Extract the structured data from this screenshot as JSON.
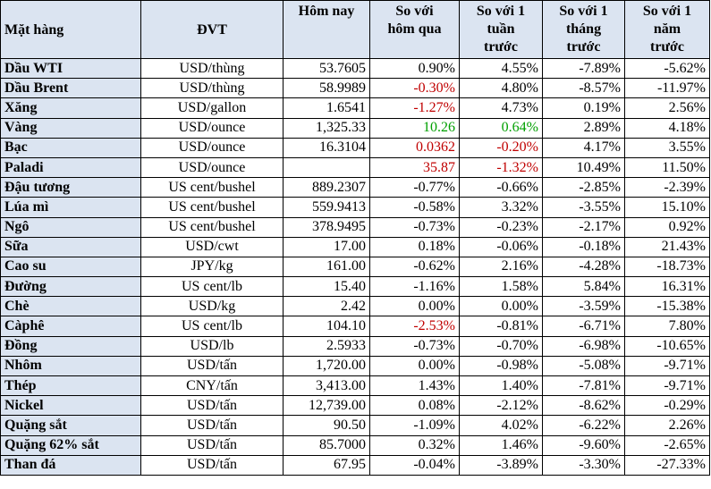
{
  "headers": {
    "item": "Mặt hàng",
    "unit": "ĐVT",
    "today": "Hôm nay",
    "vs_yesterday": [
      "So với",
      "hôm qua"
    ],
    "vs_week": [
      "So với 1",
      "tuần",
      "trước"
    ],
    "vs_month": [
      "So với 1",
      "tháng",
      "trước"
    ],
    "vs_year": [
      "So với 1",
      "năm",
      "trước"
    ]
  },
  "colors": {
    "header_bg": "#dbe4f1",
    "negative_red": "#c00000",
    "positive_green": "#00a000"
  },
  "rows": [
    {
      "name": "Dầu WTI",
      "unit": "USD/thùng",
      "today": "53.7605",
      "d": "0.90%",
      "w": "4.55%",
      "m": "-7.89%",
      "y": "-5.62%",
      "d_color": "",
      "w_color": ""
    },
    {
      "name": "Dầu Brent",
      "unit": "USD/thùng",
      "today": "58.9989",
      "d": "-0.30%",
      "w": "4.80%",
      "m": "-8.57%",
      "y": "-11.97%",
      "d_color": "red",
      "w_color": ""
    },
    {
      "name": "Xăng",
      "unit": "USD/gallon",
      "today": "1.6541",
      "d": "-1.27%",
      "w": "4.73%",
      "m": "0.19%",
      "y": "2.56%",
      "d_color": "red",
      "w_color": ""
    },
    {
      "name": "Vàng",
      "unit": "USD/ounce",
      "today": "1,325.33",
      "d": "10.26",
      "w": "0.64%",
      "m": "2.89%",
      "y": "4.18%",
      "d_color": "green",
      "w_color": "green"
    },
    {
      "name": "Bạc",
      "unit": "USD/ounce",
      "today": "16.3104",
      "d": "0.0362",
      "w": "-0.20%",
      "m": "4.17%",
      "y": "3.55%",
      "d_color": "red",
      "w_color": "red"
    },
    {
      "name": "Paladi",
      "unit": "USD/ounce",
      "today": "",
      "d": "35.87",
      "w": "-1.32%",
      "m": "10.49%",
      "y": "11.50%",
      "d_color": "red",
      "w_color": "red"
    },
    {
      "name": "Đậu tương",
      "unit": "US cent/bushel",
      "today": "889.2307",
      "d": "-0.77%",
      "w": "-0.66%",
      "m": "-2.85%",
      "y": "-2.39%",
      "d_color": "",
      "w_color": ""
    },
    {
      "name": "Lúa mì",
      "unit": "US cent/bushel",
      "today": "559.9413",
      "d": "-0.58%",
      "w": "3.32%",
      "m": "-3.55%",
      "y": "15.10%",
      "d_color": "",
      "w_color": ""
    },
    {
      "name": "Ngô",
      "unit": "US cent/bushel",
      "today": "378.9495",
      "d": "-0.73%",
      "w": "-0.23%",
      "m": "-2.17%",
      "y": "0.92%",
      "d_color": "",
      "w_color": ""
    },
    {
      "name": "Sữa",
      "unit": "USD/cwt",
      "today": "17.00",
      "d": "0.18%",
      "w": "-0.06%",
      "m": "-0.18%",
      "y": "21.43%",
      "d_color": "",
      "w_color": ""
    },
    {
      "name": "Cao su",
      "unit": "JPY/kg",
      "today": "161.00",
      "d": "-0.62%",
      "w": "2.16%",
      "m": "-4.28%",
      "y": "-18.73%",
      "d_color": "",
      "w_color": ""
    },
    {
      "name": "Đường",
      "unit": "US cent/lb",
      "today": "15.40",
      "d": "-1.16%",
      "w": "1.58%",
      "m": "5.84%",
      "y": "16.31%",
      "d_color": "",
      "w_color": ""
    },
    {
      "name": "Chè",
      "unit": "USD/kg",
      "today": "2.42",
      "d": "0.00%",
      "w": "0.00%",
      "m": "-3.59%",
      "y": "-15.38%",
      "d_color": "",
      "w_color": ""
    },
    {
      "name": "Càphê",
      "unit": "US cent/lb",
      "today": "104.10",
      "d": "-2.53%",
      "w": "-0.81%",
      "m": "-6.71%",
      "y": "7.80%",
      "d_color": "red",
      "w_color": ""
    },
    {
      "name": "Đồng",
      "unit": "USD/lb",
      "today": "2.5933",
      "d": "-0.73%",
      "w": "-0.70%",
      "m": "-6.98%",
      "y": "-10.65%",
      "d_color": "",
      "w_color": ""
    },
    {
      "name": "Nhôm",
      "unit": "USD/tấn",
      "today": "1,720.00",
      "d": "0.00%",
      "w": "-0.98%",
      "m": "-5.08%",
      "y": "-9.71%",
      "d_color": "",
      "w_color": ""
    },
    {
      "name": "Thép",
      "unit": "CNY/tấn",
      "today": "3,413.00",
      "d": "1.43%",
      "w": "1.40%",
      "m": "-7.81%",
      "y": "-9.71%",
      "d_color": "",
      "w_color": ""
    },
    {
      "name": "Nickel",
      "unit": "USD/tấn",
      "today": "12,739.00",
      "d": "0.08%",
      "w": "-2.12%",
      "m": "-8.62%",
      "y": "-0.29%",
      "d_color": "",
      "w_color": ""
    },
    {
      "name": "Quặng sắt",
      "unit": "USD/tấn",
      "today": "90.50",
      "d": "-1.09%",
      "w": "4.02%",
      "m": "-6.22%",
      "y": "2.26%",
      "d_color": "",
      "w_color": ""
    },
    {
      "name": "Quặng 62% sắt",
      "unit": "USD/tấn",
      "today": "85.7000",
      "d": "0.32%",
      "w": "1.46%",
      "m": "-9.60%",
      "y": "-2.65%",
      "d_color": "",
      "w_color": ""
    },
    {
      "name": "Than đá",
      "unit": "USD/tấn",
      "today": "67.95",
      "d": "-0.04%",
      "w": "-3.89%",
      "m": "-3.30%",
      "y": "-27.33%",
      "d_color": "",
      "w_color": ""
    }
  ]
}
